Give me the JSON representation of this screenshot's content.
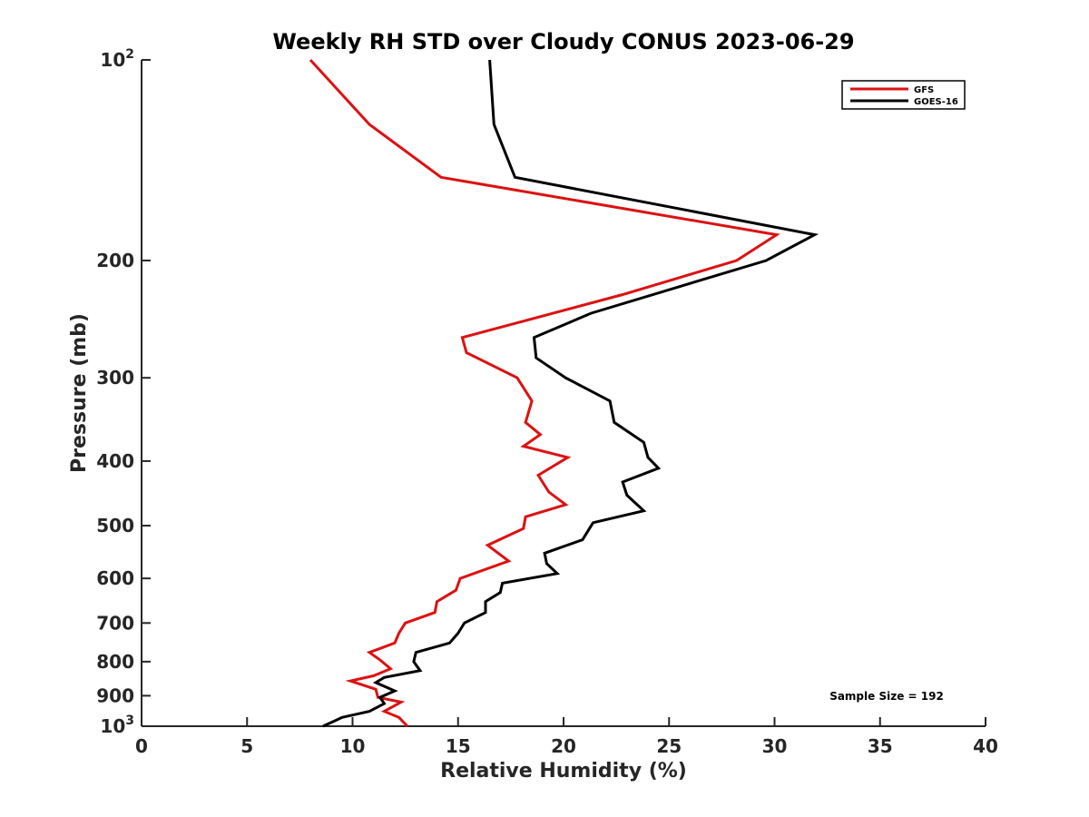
{
  "chart_data": {
    "type": "line",
    "title": "Weekly RH STD over Cloudy CONUS 2023-06-29",
    "xlabel": "Relative Humidity (%)",
    "ylabel": "Pressure (mb)",
    "xlim": [
      0,
      40
    ],
    "ylim": [
      100,
      1000
    ],
    "y_scale": "log",
    "y_reversed": true,
    "grid": false,
    "legend_position": "top-right",
    "x_ticks": [
      0,
      5,
      10,
      15,
      20,
      25,
      30,
      35,
      40
    ],
    "y_ticks": [
      {
        "value": 100,
        "base": "10",
        "exp": "2"
      },
      {
        "value": 200,
        "label": "200"
      },
      {
        "value": 300,
        "label": "300"
      },
      {
        "value": 400,
        "label": "400"
      },
      {
        "value": 500,
        "label": "500"
      },
      {
        "value": 600,
        "label": "600"
      },
      {
        "value": 700,
        "label": "700"
      },
      {
        "value": 800,
        "label": "800"
      },
      {
        "value": 900,
        "label": "900"
      },
      {
        "value": 1000,
        "base": "10",
        "exp": "3"
      }
    ],
    "annotation": "Sample Size = 192",
    "series": [
      {
        "name": "GFS",
        "color": "#dd1111",
        "points": [
          [
            8.0,
            100
          ],
          [
            10.8,
            125
          ],
          [
            14.2,
            150
          ],
          [
            30.1,
            183
          ],
          [
            28.2,
            200
          ],
          [
            22.8,
            225
          ],
          [
            15.2,
            261
          ],
          [
            15.4,
            275
          ],
          [
            17.8,
            300
          ],
          [
            18.5,
            325
          ],
          [
            18.2,
            350
          ],
          [
            18.9,
            365
          ],
          [
            18.1,
            380
          ],
          [
            20.2,
            395
          ],
          [
            18.8,
            420
          ],
          [
            19.3,
            445
          ],
          [
            20.1,
            465
          ],
          [
            18.2,
            485
          ],
          [
            18.1,
            505
          ],
          [
            16.4,
            535
          ],
          [
            17.4,
            565
          ],
          [
            15.1,
            600
          ],
          [
            14.9,
            625
          ],
          [
            14.0,
            650
          ],
          [
            13.9,
            675
          ],
          [
            12.5,
            700
          ],
          [
            12.2,
            725
          ],
          [
            12.0,
            750
          ],
          [
            10.8,
            775
          ],
          [
            11.3,
            795
          ],
          [
            11.8,
            820
          ],
          [
            11.0,
            840
          ],
          [
            9.9,
            855
          ],
          [
            11.1,
            880
          ],
          [
            11.2,
            905
          ],
          [
            12.3,
            920
          ],
          [
            11.5,
            950
          ],
          [
            12.2,
            970
          ],
          [
            12.6,
            1000
          ]
        ]
      },
      {
        "name": "GOES-16",
        "color": "#000000",
        "points": [
          [
            16.5,
            100
          ],
          [
            16.7,
            125
          ],
          [
            17.7,
            150
          ],
          [
            31.9,
            183
          ],
          [
            29.6,
            200
          ],
          [
            21.3,
            240
          ],
          [
            18.6,
            261
          ],
          [
            18.7,
            280
          ],
          [
            20.1,
            300
          ],
          [
            22.2,
            325
          ],
          [
            22.4,
            350
          ],
          [
            23.8,
            375
          ],
          [
            24.0,
            395
          ],
          [
            24.5,
            410
          ],
          [
            22.8,
            430
          ],
          [
            23.0,
            450
          ],
          [
            23.8,
            475
          ],
          [
            21.4,
            495
          ],
          [
            20.9,
            525
          ],
          [
            19.1,
            550
          ],
          [
            19.2,
            570
          ],
          [
            19.7,
            590
          ],
          [
            17.1,
            610
          ],
          [
            17.0,
            630
          ],
          [
            16.3,
            650
          ],
          [
            16.3,
            675
          ],
          [
            15.3,
            700
          ],
          [
            15.0,
            725
          ],
          [
            14.6,
            750
          ],
          [
            13.0,
            775
          ],
          [
            12.9,
            800
          ],
          [
            13.2,
            825
          ],
          [
            11.5,
            845
          ],
          [
            11.1,
            860
          ],
          [
            12.0,
            885
          ],
          [
            11.3,
            905
          ],
          [
            11.5,
            925
          ],
          [
            10.8,
            950
          ],
          [
            9.5,
            970
          ],
          [
            9.2,
            980
          ],
          [
            8.6,
            1000
          ]
        ]
      }
    ]
  }
}
